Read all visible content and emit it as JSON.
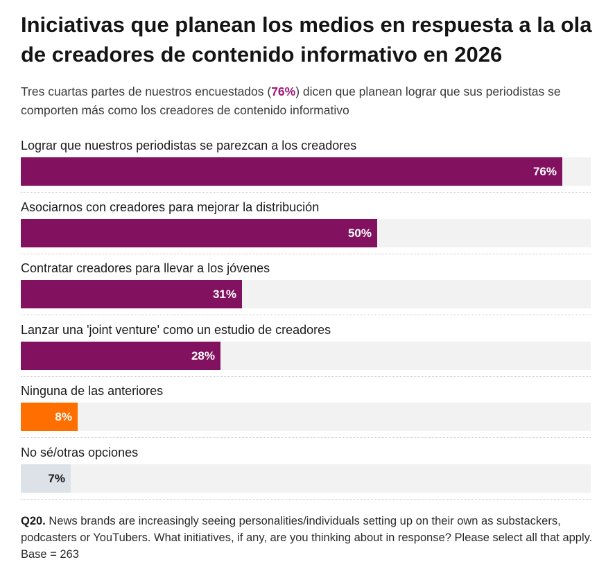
{
  "header": {
    "title": "Iniciativas que planean los medios en respuesta a la ola de creadores de contenido informativo en 2026",
    "subtitle_before": "Tres cuartas partes de nuestros encuestados (",
    "subtitle_highlight": "76%",
    "subtitle_after": ") dicen que planean lograr que sus periodistas se comporten más como los creadores de contenido informativo"
  },
  "chart_data": {
    "type": "bar",
    "orientation": "horizontal",
    "title": "Iniciativas que planean los medios en respuesta a la ola de creadores de contenido informativo en 2026",
    "categories": [
      "Lograr que nuestros periodistas se parezcan a los creadores",
      "Asociarnos con creadores para mejorar la distribución",
      "Contratar creadores para llevar a los jóvenes",
      "Lanzar una 'joint venture' como un estudio de creadores",
      "Ninguna de las anteriores",
      "No sé/otras opciones"
    ],
    "values": [
      76,
      50,
      31,
      28,
      8,
      7
    ],
    "value_labels": [
      "76%",
      "50%",
      "31%",
      "28%",
      "8%",
      "7%"
    ],
    "unit": "%",
    "xlim": [
      0,
      80
    ],
    "bar_colors": [
      "#82125f",
      "#82125f",
      "#82125f",
      "#82125f",
      "#ff6f00",
      "#dde1e8"
    ],
    "label_colors": [
      "#ffffff",
      "#ffffff",
      "#ffffff",
      "#ffffff",
      "#ffffff",
      "#1a1a1a"
    ],
    "track_color": "#f2f2f2",
    "xlabel": "",
    "ylabel": ""
  },
  "footnote": {
    "question": "Q20.",
    "text": " News brands are increasingly seeing personalities/individuals setting up on their own as substackers, podcasters or YouTubers. What initiatives, if any, are you thinking about in response? Please select all that apply. Base = 263"
  }
}
